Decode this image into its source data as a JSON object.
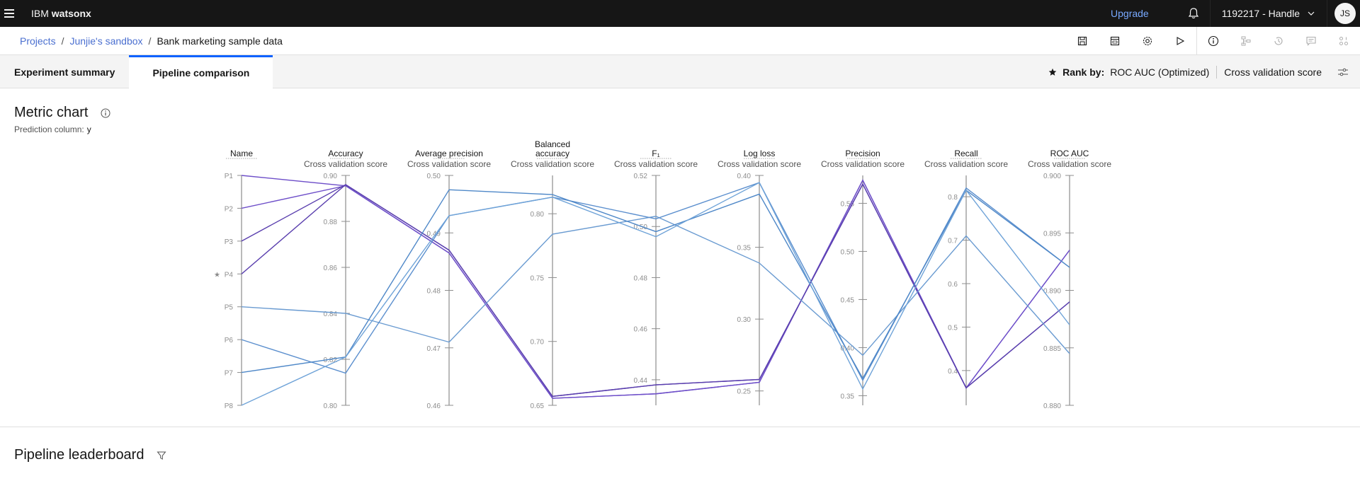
{
  "topbar": {
    "brand_prefix": "IBM",
    "brand_name": "watsonx",
    "upgrade_label": "Upgrade",
    "account_label": "1192217 - Handle",
    "avatar_initials": "JS"
  },
  "breadcrumb": {
    "items": [
      "Projects",
      "Junjie's sandbox",
      "Bank marketing sample data"
    ]
  },
  "toolbar": {
    "icons": [
      "save-icon",
      "notebook-icon",
      "settings-icon",
      "run-icon",
      "info-icon",
      "pipeline-icon",
      "history-icon",
      "comment-icon",
      "data-icon"
    ]
  },
  "tabs": {
    "items": [
      "Experiment summary",
      "Pipeline comparison"
    ],
    "active": "Pipeline comparison"
  },
  "rank": {
    "label": "Rank by:",
    "metric": "ROC AUC (Optimized)",
    "score_type": "Cross validation score"
  },
  "metric_chart": {
    "title": "Metric chart",
    "prediction_label": "Prediction column:",
    "prediction_value": "y"
  },
  "leaderboard": {
    "title": "Pipeline leaderboard"
  },
  "chart_data": {
    "type": "parallel_coordinates",
    "title": "Metric chart",
    "axes": [
      {
        "name": "Name",
        "subtitle": "",
        "ticks": [
          "P1",
          "P2",
          "P3",
          "P4",
          "P5",
          "P6",
          "P7",
          "P8"
        ]
      },
      {
        "name": "Accuracy",
        "subtitle": "Cross validation score",
        "range": [
          0.8,
          0.9
        ],
        "ticks": [
          "0.90",
          "0.88",
          "0.86",
          "0.84",
          "0.82",
          "0.80"
        ]
      },
      {
        "name": "Average precision",
        "subtitle": "Cross validation score",
        "range": [
          0.46,
          0.5
        ],
        "ticks": [
          "0.50",
          "0.49",
          "0.48",
          "0.47",
          "0.46"
        ]
      },
      {
        "name": "Balanced accuracy",
        "subtitle": "Cross validation score",
        "range": [
          0.65,
          0.83
        ],
        "ticks": [
          "0.80",
          "0.75",
          "0.70",
          "0.65"
        ]
      },
      {
        "name": "F₁",
        "subtitle": "Cross validation score",
        "range": [
          0.43,
          0.52
        ],
        "ticks": [
          "0.52",
          "0.50",
          "0.48",
          "0.46",
          "0.44"
        ]
      },
      {
        "name": "Log loss",
        "subtitle": "Cross validation score",
        "range": [
          0.24,
          0.4
        ],
        "ticks": [
          "0.40",
          "0.35",
          "0.30",
          "0.25"
        ]
      },
      {
        "name": "Precision",
        "subtitle": "Cross validation score",
        "range": [
          0.34,
          0.579
        ],
        "ticks": [
          "0.55",
          "0.50",
          "0.45",
          "0.40",
          "0.35"
        ]
      },
      {
        "name": "Recall",
        "subtitle": "Cross validation score",
        "range": [
          0.32,
          0.849
        ],
        "ticks": [
          "0.8",
          "0.7",
          "0.6",
          "0.5",
          "0.4"
        ]
      },
      {
        "name": "ROC AUC",
        "subtitle": "Cross validation score",
        "range": [
          0.88,
          0.9
        ],
        "ticks": [
          "0.900",
          "0.895",
          "0.890",
          "0.885",
          "0.880"
        ]
      }
    ],
    "starred": "P4",
    "series": [
      {
        "name": "P1",
        "color": "#6e4fc9",
        "values": [
          0.8955,
          0.4865,
          0.6555,
          0.4345,
          0.256,
          0.574,
          0.36,
          0.8935
        ]
      },
      {
        "name": "P2",
        "color": "#6e4fc9",
        "values": [
          0.8955,
          0.4865,
          0.6555,
          0.4345,
          0.256,
          0.574,
          0.36,
          0.8935
        ]
      },
      {
        "name": "P3",
        "color": "#5a3fae",
        "values": [
          0.896,
          0.487,
          0.657,
          0.438,
          0.258,
          0.57,
          0.36,
          0.889
        ]
      },
      {
        "name": "P4",
        "color": "#5a3fae",
        "values": [
          0.896,
          0.487,
          0.657,
          0.438,
          0.258,
          0.57,
          0.36,
          0.889
        ]
      },
      {
        "name": "P5",
        "color": "#6a9bd1",
        "values": [
          0.84,
          0.471,
          0.784,
          0.504,
          0.339,
          0.392,
          0.71,
          0.8845
        ]
      },
      {
        "name": "P6",
        "color": "#5b8fce",
        "values": [
          0.814,
          0.493,
          0.813,
          0.503,
          0.395,
          0.366,
          0.82,
          0.892
        ]
      },
      {
        "name": "P7",
        "color": "#4f88c8",
        "values": [
          0.821,
          0.4975,
          0.815,
          0.498,
          0.387,
          0.368,
          0.815,
          0.892
        ]
      },
      {
        "name": "P8",
        "color": "#6fa3d8",
        "values": [
          0.821,
          0.493,
          0.813,
          0.496,
          0.395,
          0.357,
          0.815,
          0.887
        ]
      }
    ]
  }
}
